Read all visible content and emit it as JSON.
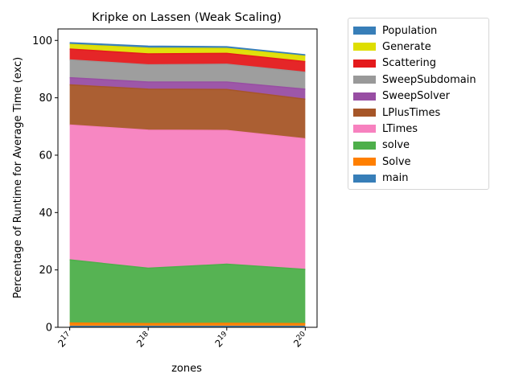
{
  "chart_data": {
    "type": "area",
    "title": "Kripke on Lassen (Weak Scaling)",
    "xlabel": "zones",
    "ylabel": "Percentage of Runtime for Average Time (exc)",
    "x": [
      17,
      18,
      19,
      20
    ],
    "x_tick_labels": [
      {
        "base": "2",
        "exp": "17"
      },
      {
        "base": "2",
        "exp": "18"
      },
      {
        "base": "2",
        "exp": "19"
      },
      {
        "base": "2",
        "exp": "20"
      }
    ],
    "ylim": [
      0,
      104
    ],
    "y_ticks": [
      0,
      20,
      40,
      60,
      80,
      100
    ],
    "legend_position": "outside-top-right",
    "grid": false,
    "series": [
      {
        "name": "main",
        "color": "#377eb8",
        "values": [
          0.3,
          0.3,
          0.3,
          0.3
        ]
      },
      {
        "name": "Solve",
        "color": "#ff7f00",
        "values": [
          1.2,
          1.0,
          1.1,
          1.0
        ]
      },
      {
        "name": "solve",
        "color": "#4daf4a",
        "values": [
          22.0,
          19.3,
          20.6,
          18.9
        ]
      },
      {
        "name": "LTimes",
        "color": "#f781bf",
        "values": [
          47.0,
          48.1,
          46.6,
          45.5
        ]
      },
      {
        "name": "LPlusTimes",
        "color": "#a65628",
        "values": [
          14.0,
          14.3,
          14.3,
          13.8
        ]
      },
      {
        "name": "SweepSolver",
        "color": "#984ea3",
        "values": [
          2.5,
          2.5,
          2.6,
          3.5
        ]
      },
      {
        "name": "SweepSubdomain",
        "color": "#999999",
        "values": [
          6.2,
          6.0,
          6.2,
          5.9
        ]
      },
      {
        "name": "Scattering",
        "color": "#e41a1c",
        "values": [
          3.8,
          3.8,
          3.8,
          3.7
        ]
      },
      {
        "name": "Generate",
        "color": "#dede00",
        "values": [
          1.6,
          2.0,
          1.7,
          1.9
        ]
      },
      {
        "name": "Population",
        "color": "#377eb8",
        "values": [
          0.6,
          0.7,
          0.6,
          0.5
        ]
      }
    ]
  }
}
